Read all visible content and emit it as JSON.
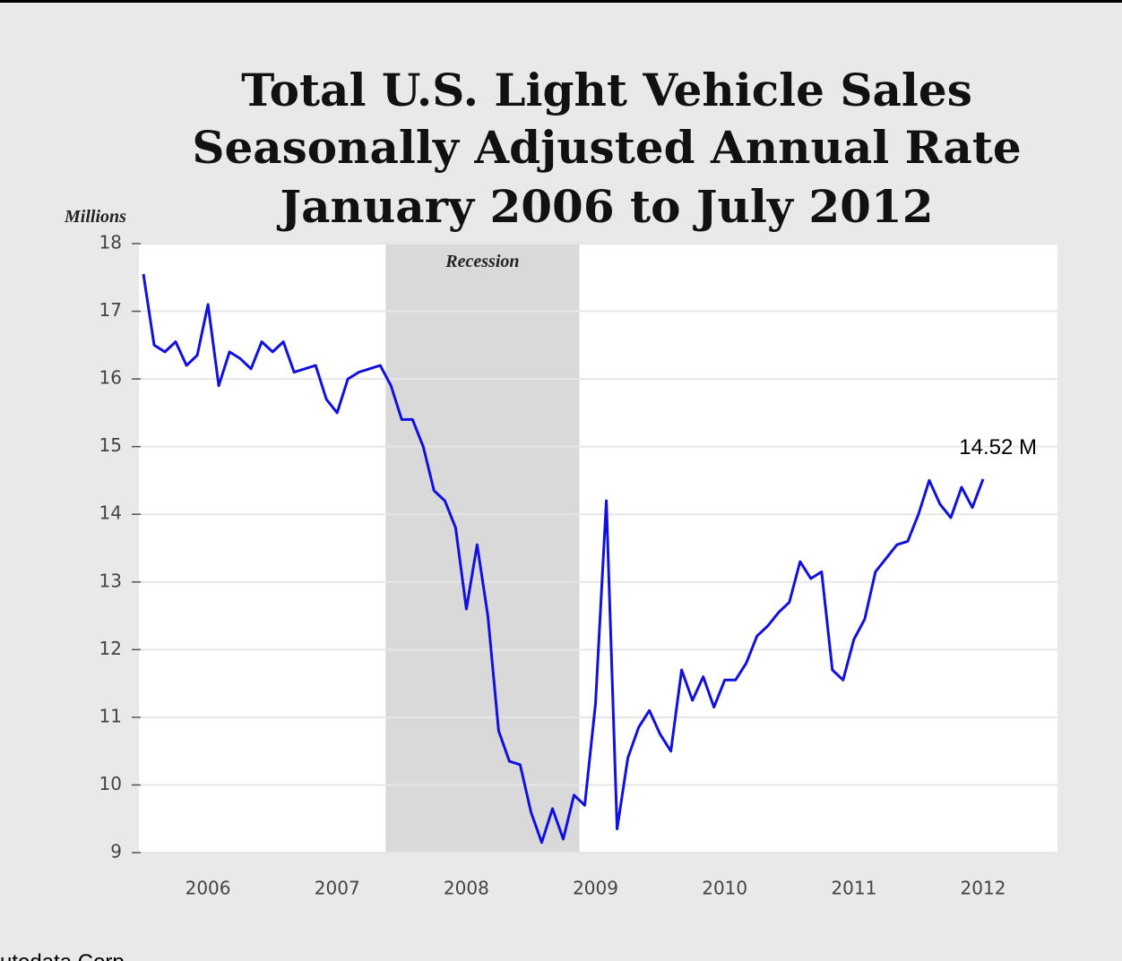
{
  "chart_data": {
    "type": "line",
    "title": [
      "Total U.S. Light Vehicle Sales",
      "Seasonally Adjusted Annual Rate",
      "January 2006 to July 2012"
    ],
    "y_label": "Millions",
    "source": "utodata Corp.",
    "categories": [
      null,
      null,
      null,
      null,
      null,
      null,
      "2006",
      null,
      null,
      null,
      null,
      null,
      null,
      null,
      null,
      null,
      null,
      null,
      "2007",
      null,
      null,
      null,
      null,
      null,
      null,
      null,
      null,
      null,
      null,
      null,
      "2008",
      null,
      null,
      null,
      null,
      null,
      null,
      null,
      null,
      null,
      null,
      null,
      "2009",
      null,
      null,
      null,
      null,
      null,
      null,
      null,
      null,
      null,
      null,
      null,
      "2010",
      null,
      null,
      null,
      null,
      null,
      null,
      null,
      null,
      null,
      null,
      null,
      "2011",
      null,
      null,
      null,
      null,
      null,
      null,
      null,
      null,
      null,
      null,
      null,
      "2012"
    ],
    "series": [
      {
        "color": "#1010e0",
        "values": [
          17.55,
          16.5,
          16.4,
          16.55,
          16.2,
          16.35,
          17.1,
          15.9,
          16.4,
          16.3,
          16.15,
          16.55,
          16.4,
          16.55,
          16.1,
          16.15,
          16.2,
          15.7,
          15.5,
          16.0,
          16.1,
          16.15,
          16.2,
          15.9,
          15.4,
          15.4,
          15.0,
          14.35,
          14.2,
          13.8,
          12.6,
          13.55,
          12.5,
          10.8,
          10.35,
          10.3,
          9.6,
          9.15,
          9.65,
          9.2,
          9.85,
          9.7,
          11.2,
          14.2,
          9.35,
          10.4,
          10.85,
          11.1,
          10.75,
          10.5,
          11.7,
          11.25,
          11.6,
          11.15,
          11.55,
          11.55,
          11.8,
          12.2,
          12.35,
          12.55,
          12.7,
          13.3,
          13.05,
          13.15,
          11.7,
          11.55,
          12.15,
          12.45,
          13.15,
          13.35,
          13.55,
          13.6,
          14.0,
          14.5,
          14.15,
          13.95,
          14.4,
          14.1,
          14.52
        ]
      }
    ],
    "annotation": {
      "text": "14.52 M",
      "index": 78
    },
    "shaded_span": {
      "label": "Recession",
      "start_index": 22.5,
      "end_index": 40.5
    },
    "ylim": [
      9,
      18
    ],
    "yticks": [
      9,
      10,
      11,
      12,
      13,
      14,
      15,
      16,
      17,
      18
    ],
    "grid": true
  }
}
